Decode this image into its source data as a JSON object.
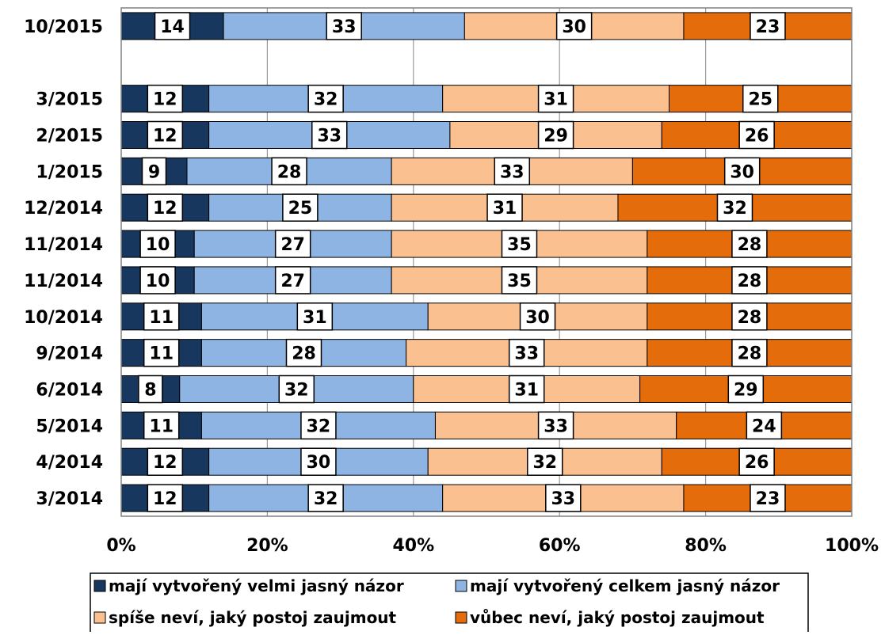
{
  "chart_data": {
    "type": "bar",
    "orientation": "horizontal",
    "stacked": "percent",
    "categories": [
      "10/2015",
      "",
      "3/2015",
      "2/2015",
      "1/2015",
      "12/2014",
      "11/2014",
      "11/2014",
      "10/2014",
      "9/2014",
      "6/2014",
      "5/2014",
      "4/2014",
      "3/2014"
    ],
    "series": [
      {
        "name": "mají vytvořený velmi jasný názor",
        "color": "#17375E",
        "values": [
          14,
          null,
          12,
          12,
          9,
          12,
          10,
          10,
          11,
          11,
          8,
          11,
          12,
          12
        ]
      },
      {
        "name": "mají vytvořený celkem jasný názor",
        "color": "#8DB4E2",
        "values": [
          33,
          null,
          32,
          33,
          28,
          25,
          27,
          27,
          31,
          28,
          32,
          32,
          30,
          32
        ]
      },
      {
        "name": "spíše neví, jaký postoj zaujmout",
        "color": "#FAC090",
        "values": [
          30,
          null,
          31,
          29,
          33,
          31,
          35,
          35,
          30,
          33,
          31,
          33,
          32,
          33
        ]
      },
      {
        "name": "vůbec neví, jaký postoj zaujmout",
        "color": "#E46C0A",
        "values": [
          23,
          null,
          25,
          26,
          30,
          32,
          28,
          28,
          28,
          28,
          29,
          24,
          26,
          23
        ]
      }
    ],
    "x_ticks": [
      "0%",
      "20%",
      "40%",
      "60%",
      "80%",
      "100%"
    ],
    "xlim": [
      0,
      100
    ],
    "grid": true,
    "legend_position": "bottom",
    "data_labels": true,
    "title": "",
    "xlabel": "",
    "ylabel": ""
  }
}
